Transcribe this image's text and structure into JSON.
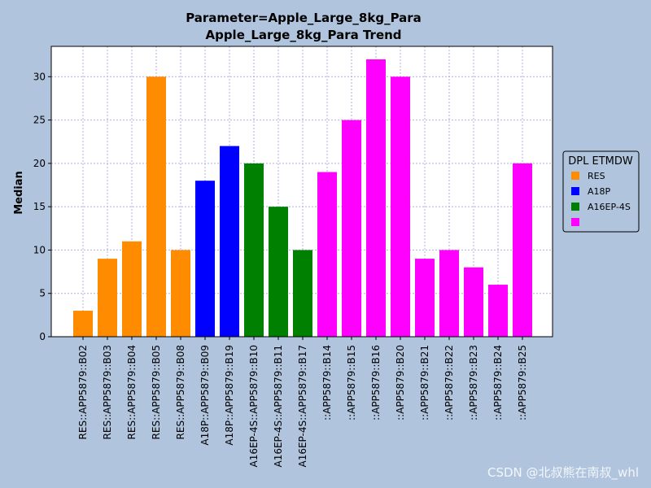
{
  "chart_data": {
    "type": "bar",
    "title_line1": "Parameter=Apple_Large_8kg_Para",
    "title_line2": "Apple_Large_8kg_Para Trend",
    "xlabel": "",
    "ylabel": "Median",
    "ylim": [
      0,
      33.5
    ],
    "yticks": [
      0,
      5,
      10,
      15,
      20,
      25,
      30
    ],
    "grid": true,
    "categories": [
      "RES::APP5879::B02",
      "RES::APP5879::B03",
      "RES::APP5879::B04",
      "RES::APP5879::B05",
      "RES::APP5879::B08",
      "A18P::APP5879::B09",
      "A18P::APP5879::B19",
      "A16EP-4S::APP5879::B10",
      "A16EP-4S::APP5879::B11",
      "A16EP-4S::APP5879::B17",
      "::APP5879::B14",
      "::APP5879::B15",
      "::APP5879::B16",
      "::APP5879::B20",
      "::APP5879::B21",
      "::APP5879::B22",
      "::APP5879::B23",
      "::APP5879::B24",
      "::APP5879::B25"
    ],
    "values": [
      3,
      9,
      11,
      30,
      10,
      18,
      22,
      20,
      15,
      10,
      19,
      25,
      32,
      30,
      9,
      10,
      8,
      6,
      20
    ],
    "groups": [
      0,
      0,
      0,
      0,
      0,
      1,
      1,
      2,
      2,
      2,
      3,
      3,
      3,
      3,
      3,
      3,
      3,
      3,
      3
    ],
    "legend": {
      "title": "DPL ETMDW",
      "placement": "right",
      "entries": [
        {
          "label": "RES",
          "color": "#ff8c00"
        },
        {
          "label": "A18P",
          "color": "#0000ff"
        },
        {
          "label": "A16EP-4S",
          "color": "#008000"
        },
        {
          "label": "",
          "color": "#ff00ff"
        }
      ]
    }
  },
  "watermark": "CSDN @北叔熊在南叔_whl"
}
